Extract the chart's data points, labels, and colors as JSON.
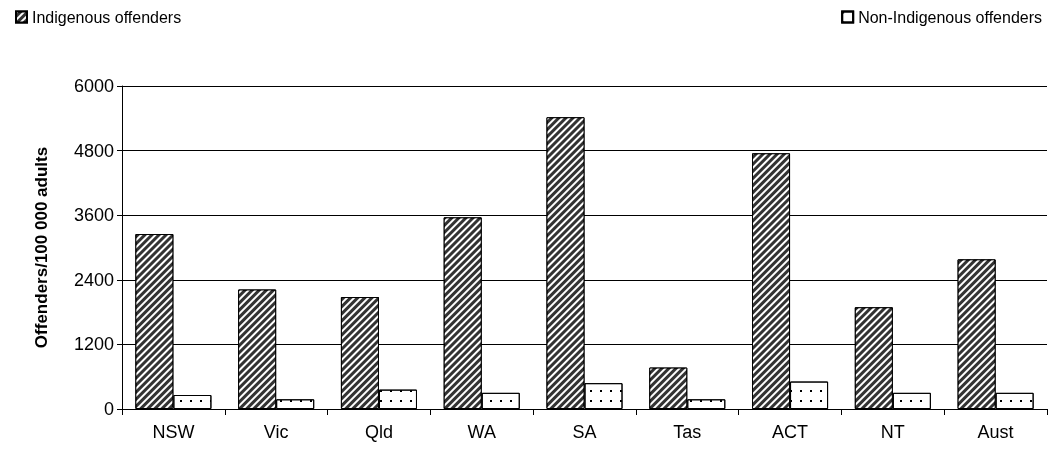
{
  "chart_data": {
    "type": "bar",
    "ylabel": "Offenders/100 000 adults",
    "categories": [
      "NSW",
      "Vic",
      "Qld",
      "WA",
      "SA",
      "Tas",
      "ACT",
      "NT",
      "Aust"
    ],
    "series": [
      {
        "name": "Indigenous offenders",
        "color": "#333333",
        "values": [
          3250,
          2220,
          2080,
          3560,
          5420,
          770,
          4750,
          1890,
          2780
        ]
      },
      {
        "name": "Non-Indigenous offenders",
        "color": "#ffffff",
        "values": [
          260,
          180,
          360,
          300,
          480,
          180,
          510,
          300,
          300
        ]
      }
    ],
    "ylim": [
      0,
      6000
    ],
    "yticks": [
      0,
      1200,
      2400,
      3600,
      4800,
      6000
    ],
    "grid": "y",
    "legend": "top"
  }
}
